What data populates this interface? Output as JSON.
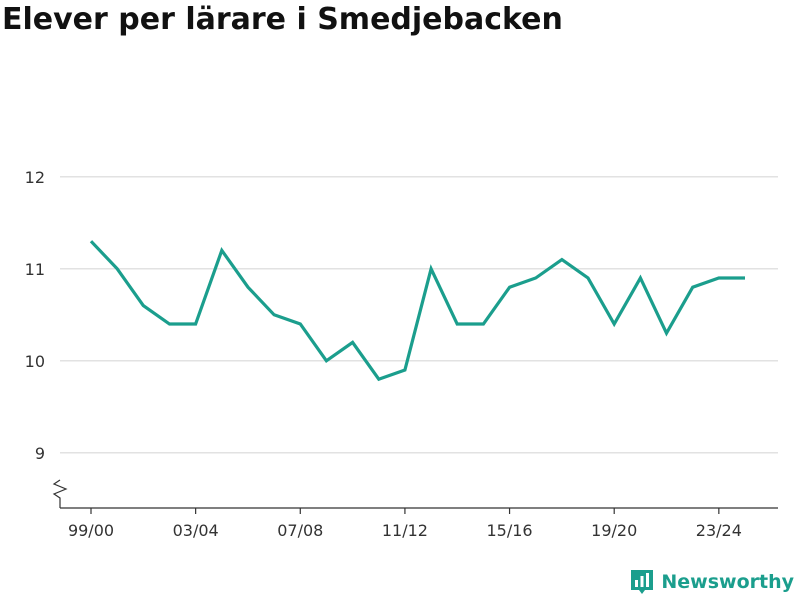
{
  "title": "Elever per lärare i Smedjebacken",
  "brand": {
    "name": "Newsworthy",
    "icon": "newsworthy-logo-icon",
    "color": "#1b9e8d"
  },
  "chart_data": {
    "type": "line",
    "title": "Elever per lärare i Smedjebacken",
    "xlabel": "",
    "ylabel": "",
    "x": [
      "99/00",
      "00/01",
      "01/02",
      "02/03",
      "03/04",
      "04/05",
      "05/06",
      "06/07",
      "07/08",
      "08/09",
      "09/10",
      "10/11",
      "11/12",
      "12/13",
      "13/14",
      "14/15",
      "15/16",
      "16/17",
      "17/18",
      "18/19",
      "19/20",
      "20/21",
      "21/22",
      "22/23",
      "23/24",
      "24/25"
    ],
    "x_tick_labels": [
      "99/00",
      "03/04",
      "07/08",
      "11/12",
      "15/16",
      "19/20",
      "23/24"
    ],
    "x_tick_indices": [
      0,
      4,
      8,
      12,
      16,
      20,
      24
    ],
    "y_tick_labels": [
      "9",
      "10",
      "11",
      "12"
    ],
    "y_ticks": [
      9,
      10,
      11,
      12
    ],
    "ylim": [
      8.4,
      12.4
    ],
    "y_axis_break": true,
    "grid": true,
    "legend": "none",
    "series": [
      {
        "color": "#1b9e8d",
        "values": [
          11.3,
          11.0,
          10.6,
          10.4,
          10.4,
          11.2,
          10.8,
          10.5,
          10.4,
          10.0,
          10.2,
          9.8,
          9.9,
          11.0,
          10.4,
          10.4,
          10.8,
          10.9,
          11.1,
          10.9,
          10.4,
          10.9,
          10.3,
          10.8,
          10.9,
          10.9
        ]
      }
    ]
  }
}
